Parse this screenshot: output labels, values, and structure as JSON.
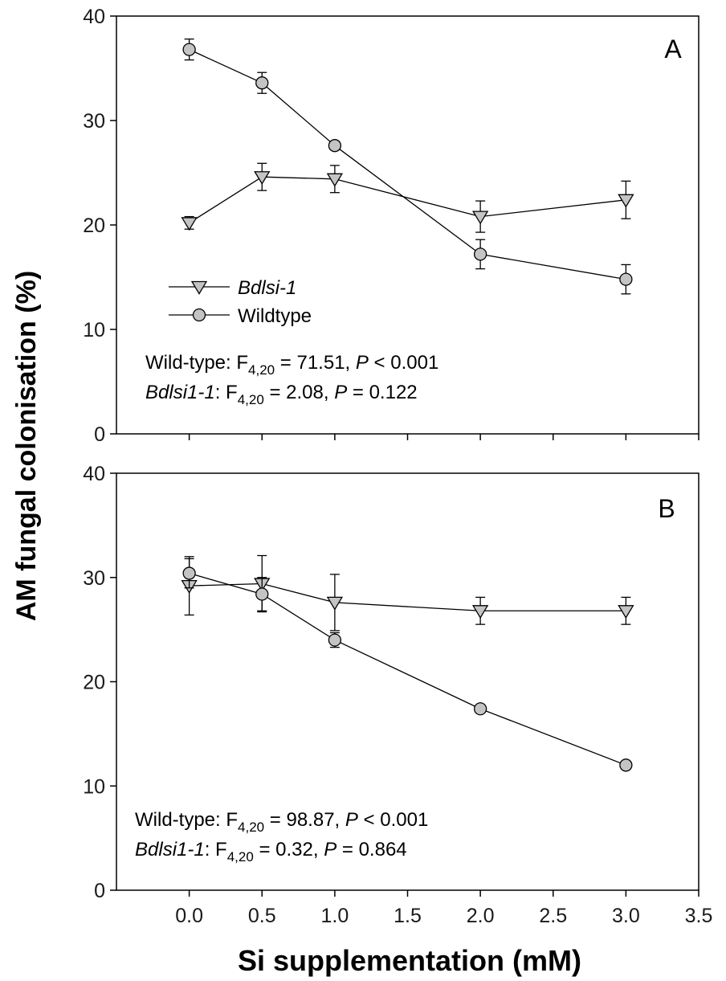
{
  "chart_data": [
    {
      "type": "line",
      "panel_label": "A",
      "xlim": [
        -0.5,
        3.5
      ],
      "ylim": [
        0,
        40
      ],
      "x_ticks": [
        0.0,
        0.5,
        1.0,
        1.5,
        2.0,
        2.5,
        3.0,
        3.5
      ],
      "y_ticks": [
        0,
        10,
        20,
        30,
        40
      ],
      "legend": {
        "placement": "center-left",
        "entries": [
          {
            "series": "Bdlsi-1",
            "label": "Bdlsi-1",
            "italic": true
          },
          {
            "series": "Wildtype",
            "label": "Wildtype",
            "italic": false
          }
        ]
      },
      "series": [
        {
          "name": "Bdlsi-1",
          "marker": "triangle-down",
          "x": [
            0,
            0.5,
            1,
            2,
            3
          ],
          "y": [
            20.2,
            24.6,
            24.4,
            20.8,
            22.4
          ],
          "error": [
            0.6,
            1.3,
            1.3,
            1.5,
            1.8
          ]
        },
        {
          "name": "Wildtype",
          "marker": "circle",
          "x": [
            0,
            0.5,
            1,
            2,
            3
          ],
          "y": [
            36.8,
            33.6,
            27.6,
            17.2,
            14.8
          ],
          "error": [
            1.0,
            1.0,
            0.4,
            1.4,
            1.4
          ]
        }
      ],
      "stats": [
        {
          "label": "Wild-type",
          "label_italic": false,
          "df": "4,20",
          "F": "71.51",
          "P": "< 0.001"
        },
        {
          "label": "Bdlsi1-1",
          "label_italic": true,
          "df": "4,20",
          "F": "2.08",
          "P": "= 0.122"
        }
      ]
    },
    {
      "type": "line",
      "panel_label": "B",
      "xlim": [
        -0.5,
        3.5
      ],
      "ylim": [
        0,
        40
      ],
      "x_ticks": [
        0.0,
        0.5,
        1.0,
        1.5,
        2.0,
        2.5,
        3.0,
        3.5
      ],
      "y_ticks": [
        0,
        10,
        20,
        30,
        40
      ],
      "series": [
        {
          "name": "Bdlsi-1",
          "marker": "triangle-down",
          "x": [
            0,
            0.5,
            1,
            2,
            3
          ],
          "y": [
            29.2,
            29.4,
            27.6,
            26.8,
            26.8
          ],
          "error": [
            2.8,
            2.7,
            2.7,
            1.3,
            1.3
          ]
        },
        {
          "name": "Wildtype",
          "marker": "circle",
          "x": [
            0,
            0.5,
            1,
            2,
            3
          ],
          "y": [
            30.4,
            28.4,
            24.0,
            17.4,
            12.0
          ],
          "error": [
            1.4,
            1.6,
            0.7,
            0.3,
            0.3
          ]
        }
      ],
      "stats": [
        {
          "label": "Wild-type",
          "label_italic": false,
          "df": "4,20",
          "F": "98.87",
          "P": "< 0.001"
        },
        {
          "label": "Bdlsi1-1",
          "label_italic": true,
          "df": "4,20",
          "F": "0.32",
          "P": "= 0.864"
        }
      ]
    }
  ],
  "axes": {
    "ylabel": "AM fungal colonisation (%)",
    "xlabel": "Si supplementation (mM)"
  },
  "colors": {
    "marker_fill": "#c4c4c4",
    "line": "#000000",
    "axis": "#000000"
  }
}
